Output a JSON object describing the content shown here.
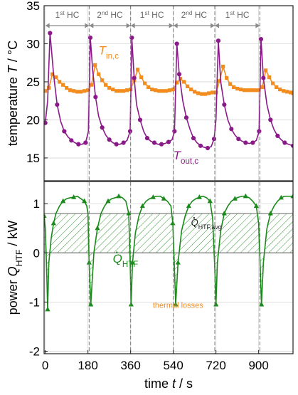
{
  "chart_data": [
    {
      "type": "line",
      "panel": "top",
      "ylabel_main": "temperature ",
      "ylabel_var": "T",
      "ylabel_unit": " / °C",
      "ylim": [
        12,
        35
      ],
      "yticks": [
        15,
        20,
        25,
        30,
        35
      ],
      "xlim": [
        -5,
        1045
      ],
      "grid": true,
      "cycles": [
        {
          "label_sup": "st",
          "label_num": "1",
          "label_rest": " HC",
          "start": 0,
          "end": 185
        },
        {
          "label_sup": "nd",
          "label_num": "2",
          "label_rest": " HC",
          "start": 185,
          "end": 360
        },
        {
          "label_sup": "st",
          "label_num": "1",
          "label_rest": " HC",
          "start": 360,
          "end": 540
        },
        {
          "label_sup": "nd",
          "label_num": "2",
          "label_rest": " HC",
          "start": 540,
          "end": 715
        },
        {
          "label_sup": "st",
          "label_num": "1",
          "label_rest": " HC",
          "start": 715,
          "end": 905
        }
      ],
      "series": [
        {
          "name_var": "T",
          "name_sub": "in,c",
          "color": "#F28C1E",
          "marker": "square",
          "x": [
            0,
            15,
            30,
            45,
            60,
            75,
            90,
            105,
            120,
            135,
            150,
            165,
            180,
            195,
            210,
            225,
            240,
            255,
            270,
            285,
            300,
            315,
            330,
            345,
            360,
            375,
            390,
            405,
            420,
            435,
            450,
            465,
            480,
            495,
            510,
            525,
            540,
            555,
            570,
            585,
            600,
            615,
            630,
            645,
            660,
            675,
            690,
            705,
            720,
            735,
            750,
            765,
            780,
            795,
            810,
            825,
            840,
            855,
            870,
            885,
            900,
            915,
            930,
            945,
            960,
            975,
            990,
            1005,
            1020,
            1035,
            1045
          ],
          "y": [
            23.8,
            24.2,
            26.0,
            25.6,
            25.0,
            24.6,
            24.2,
            23.9,
            23.8,
            23.7,
            23.7,
            23.8,
            23.9,
            24.6,
            27.2,
            26.0,
            25.2,
            24.6,
            24.2,
            24.0,
            23.8,
            23.8,
            23.8,
            23.9,
            24.0,
            25.2,
            26.6,
            25.6,
            24.8,
            24.3,
            24.0,
            23.9,
            23.8,
            23.8,
            23.8,
            23.9,
            24.0,
            24.9,
            25.4,
            25.0,
            24.4,
            24.0,
            23.7,
            23.5,
            23.4,
            23.4,
            23.5,
            23.6,
            23.6,
            25.1,
            27.0,
            25.5,
            24.7,
            24.3,
            24.1,
            24.0,
            23.9,
            23.9,
            23.9,
            23.9,
            23.9,
            24.3,
            26.5,
            25.6,
            24.8,
            24.3,
            24.0,
            23.8,
            23.7,
            23.6,
            23.5
          ]
        },
        {
          "name_var": "T",
          "name_sub": "out,c",
          "color": "#8B1A89",
          "marker": "circle",
          "x": [
            0,
            10,
            20,
            35,
            50,
            65,
            80,
            95,
            110,
            125,
            140,
            155,
            170,
            182,
            190,
            200,
            212,
            225,
            240,
            255,
            270,
            285,
            300,
            315,
            330,
            345,
            358,
            365,
            375,
            385,
            400,
            415,
            430,
            445,
            460,
            475,
            490,
            505,
            520,
            535,
            545,
            555,
            565,
            580,
            595,
            610,
            625,
            640,
            655,
            670,
            685,
            700,
            712,
            720,
            730,
            740,
            755,
            770,
            785,
            800,
            815,
            830,
            845,
            860,
            875,
            890,
            902,
            910,
            920,
            935,
            950,
            965,
            980,
            995,
            1010,
            1025,
            1045
          ],
          "y": [
            19.6,
            22.5,
            31.4,
            26.0,
            22.0,
            19.8,
            18.5,
            17.8,
            17.3,
            17.0,
            16.8,
            16.8,
            17.0,
            18.5,
            30.8,
            26.5,
            23.0,
            20.5,
            19.0,
            18.0,
            17.4,
            17.0,
            16.8,
            16.8,
            17.0,
            17.3,
            18.5,
            30.8,
            25.5,
            22.0,
            20.0,
            18.5,
            17.6,
            17.2,
            17.0,
            16.8,
            16.8,
            16.9,
            17.1,
            17.4,
            18.5,
            30.0,
            26.0,
            22.5,
            20.3,
            18.8,
            17.6,
            17.0,
            16.6,
            16.4,
            16.3,
            16.5,
            17.5,
            20.0,
            30.4,
            25.0,
            22.0,
            20.0,
            18.8,
            18.0,
            17.5,
            17.2,
            17.0,
            16.9,
            17.0,
            17.3,
            18.5,
            30.6,
            25.5,
            22.0,
            20.0,
            18.7,
            17.9,
            17.4,
            17.0,
            16.8,
            16.6
          ]
        }
      ],
      "labels": [
        {
          "series": 0,
          "var": "T",
          "sub": "in,c",
          "at_x": 225,
          "at_y": 28.6
        },
        {
          "series": 1,
          "var": "T",
          "sub": "out,c",
          "at_x": 540,
          "at_y": 14.8
        }
      ]
    },
    {
      "type": "area",
      "panel": "bottom",
      "ylabel_main": "power ",
      "ylabel_var": "Q",
      "ylabel_sub": "HTF",
      "ylabel_unit": " / kW",
      "ylim": [
        -2.05,
        1.45
      ],
      "yticks": [
        -2,
        -1,
        0,
        1
      ],
      "xlabel_main": "time ",
      "xlabel_var": "t",
      "xlabel_unit": " / s",
      "xlim": [
        -5,
        1045
      ],
      "xticks": [
        0,
        180,
        360,
        540,
        720,
        900
      ],
      "grid": true,
      "avg_value": 0.8,
      "series": [
        {
          "name_var": "Q",
          "name_sub": "HTF",
          "color": "#1A8A1A",
          "marker": "triangle",
          "x": [
            -5,
            0,
            5,
            10,
            15,
            25,
            35,
            45,
            60,
            75,
            90,
            105,
            120,
            135,
            150,
            165,
            175,
            180,
            185,
            192,
            205,
            220,
            235,
            250,
            265,
            280,
            295,
            310,
            325,
            340,
            352,
            358,
            362,
            368,
            380,
            395,
            410,
            425,
            440,
            455,
            470,
            485,
            500,
            515,
            530,
            538,
            544,
            550,
            560,
            575,
            590,
            605,
            620,
            635,
            650,
            665,
            680,
            695,
            706,
            714,
            720,
            726,
            740,
            755,
            770,
            785,
            800,
            815,
            830,
            845,
            860,
            875,
            890,
            900,
            906,
            912,
            920,
            935,
            950,
            965,
            980,
            995,
            1010,
            1025,
            1045
          ],
          "y": [
            0.75,
            0.5,
            -0.2,
            -1.15,
            -0.2,
            0.3,
            0.6,
            0.8,
            0.95,
            1.05,
            1.1,
            1.12,
            1.13,
            1.15,
            1.1,
            1.05,
            0.95,
            0.8,
            -0.2,
            -1.05,
            0.0,
            0.5,
            0.8,
            0.95,
            1.05,
            1.1,
            1.12,
            1.15,
            1.12,
            1.05,
            0.8,
            -0.2,
            -1.05,
            -0.2,
            0.4,
            0.75,
            0.95,
            1.05,
            1.1,
            1.13,
            1.15,
            1.15,
            1.1,
            1.05,
            0.95,
            0.6,
            -0.2,
            -1.05,
            -0.2,
            0.45,
            0.75,
            0.95,
            1.05,
            1.1,
            1.13,
            1.15,
            1.12,
            1.05,
            0.7,
            -0.2,
            -1.05,
            -0.2,
            0.45,
            0.8,
            0.95,
            1.05,
            1.1,
            1.13,
            1.15,
            1.15,
            1.12,
            1.05,
            0.95,
            0.6,
            -0.2,
            -1.05,
            -0.2,
            0.5,
            0.8,
            0.95,
            1.05,
            1.12,
            1.15,
            1.15,
            1.15
          ]
        }
      ],
      "labels": [
        {
          "kind": "series",
          "var": "Q",
          "sub": "HTF",
          "color": "#1A8A1A",
          "at_x": 285,
          "at_y": -0.2
        },
        {
          "kind": "avg",
          "var": "Q",
          "sub": "HTF,avg",
          "color": "#222222",
          "at_x": 615,
          "at_y": 0.55
        },
        {
          "kind": "losses",
          "text": "thermal losses",
          "color": "#F28C1E",
          "at_x": 560,
          "at_y": -1.12
        }
      ]
    }
  ]
}
